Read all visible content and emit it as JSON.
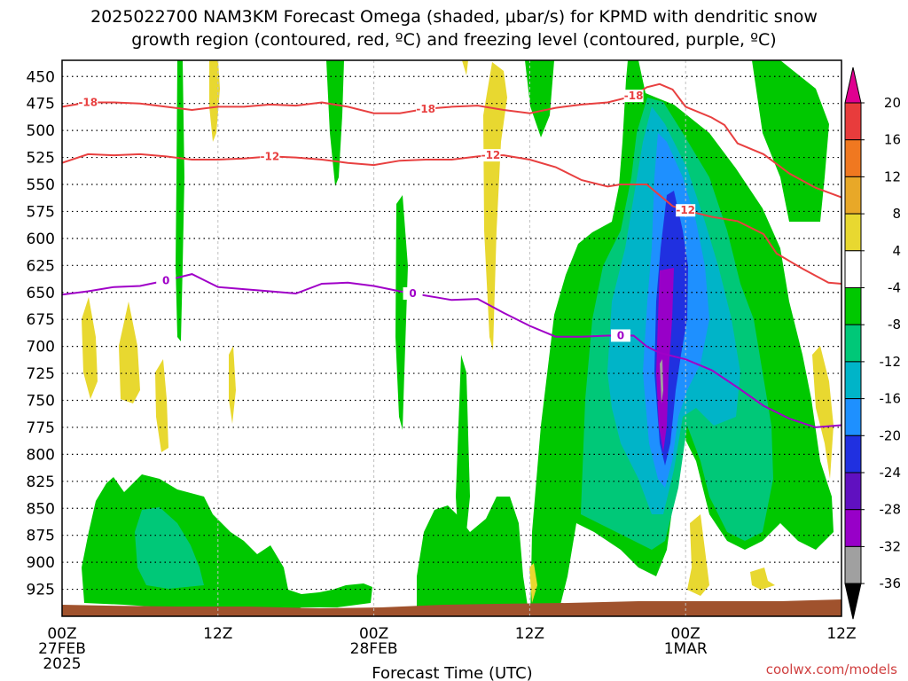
{
  "chart_data": {
    "type": "heatmap",
    "title_line1": "2025022700 NAM3KM Forecast Omega (shaded, μbar/s) for KPMD with dendritic snow",
    "title_line2": "growth region (contoured, red, ºC) and freezing level (contoured, purple, ºC)",
    "xlabel": "Forecast Time (UTC)",
    "credit": "coolwx.com/models",
    "x_ticks": [
      {
        "hour": 0,
        "label": "00Z",
        "sub1": "27FEB",
        "sub2": "2025"
      },
      {
        "hour": 12,
        "label": "12Z",
        "sub1": "",
        "sub2": ""
      },
      {
        "hour": 24,
        "label": "00Z",
        "sub1": "28FEB",
        "sub2": ""
      },
      {
        "hour": 36,
        "label": "12Z",
        "sub1": "",
        "sub2": ""
      },
      {
        "hour": 48,
        "label": "00Z",
        "sub1": "1MAR",
        "sub2": ""
      },
      {
        "hour": 60,
        "label": "12Z",
        "sub1": "",
        "sub2": ""
      }
    ],
    "xlim": [
      0,
      60
    ],
    "y_ticks": [
      "450",
      "475",
      "500",
      "525",
      "550",
      "575",
      "600",
      "625",
      "650",
      "675",
      "700",
      "725",
      "750",
      "775",
      "800",
      "825",
      "850",
      "875",
      "900",
      "925"
    ],
    "ylim": [
      435,
      950
    ],
    "colorbar": {
      "ticks": [
        "20",
        "16",
        "12",
        "8",
        "4",
        "-4",
        "-8",
        "-12",
        "-16",
        "-20",
        "-24",
        "-28",
        "-32",
        "-36"
      ],
      "colors": [
        "#e00090",
        "#e83c3c",
        "#f07820",
        "#e8a828",
        "#e8d830",
        "#ffffff",
        "#00c800",
        "#00c878",
        "#00b4c8",
        "#1e90ff",
        "#2030e0",
        "#6010c0",
        "#9800c8",
        "#a0a0a0",
        "#000000"
      ]
    },
    "contours": {
      "dgz_red": {
        "color": "#e84040",
        "lines": [
          {
            "label": "-18",
            "points": [
              [
                0,
                478
              ],
              [
                2,
                474
              ],
              [
                4,
                474
              ],
              [
                6,
                475
              ],
              [
                8,
                478
              ],
              [
                10,
                481
              ],
              [
                12,
                478
              ],
              [
                14,
                478
              ],
              [
                16,
                476
              ],
              [
                18,
                477
              ],
              [
                20,
                474
              ],
              [
                22,
                478
              ],
              [
                24,
                484
              ],
              [
                26,
                484
              ],
              [
                28,
                480
              ],
              [
                30,
                478
              ],
              [
                32,
                477
              ],
              [
                34,
                481
              ],
              [
                36,
                484
              ],
              [
                38,
                479
              ],
              [
                40,
                476
              ],
              [
                42,
                474
              ],
              [
                44,
                468
              ],
              [
                45,
                460
              ],
              [
                46,
                457
              ],
              [
                47,
                462
              ],
              [
                48,
                478
              ],
              [
                50,
                488
              ],
              [
                51,
                495
              ],
              [
                52,
                512
              ],
              [
                54,
                522
              ],
              [
                56,
                540
              ],
              [
                58,
                553
              ],
              [
                60,
                562
              ]
            ]
          },
          {
            "label": "-12",
            "points": [
              [
                0,
                530
              ],
              [
                2,
                522
              ],
              [
                4,
                523
              ],
              [
                6,
                522
              ],
              [
                8,
                524
              ],
              [
                10,
                527
              ],
              [
                12,
                527
              ],
              [
                14,
                526
              ],
              [
                16,
                524
              ],
              [
                18,
                525
              ],
              [
                20,
                527
              ],
              [
                22,
                530
              ],
              [
                24,
                532
              ],
              [
                26,
                528
              ],
              [
                28,
                527
              ],
              [
                30,
                527
              ],
              [
                32,
                524
              ],
              [
                33,
                523
              ],
              [
                34,
                523
              ],
              [
                36,
                527
              ],
              [
                38,
                534
              ],
              [
                40,
                546
              ],
              [
                42,
                552
              ],
              [
                43,
                550
              ],
              [
                44,
                550
              ],
              [
                45,
                550
              ],
              [
                46,
                560
              ],
              [
                47,
                570
              ],
              [
                48,
                574
              ],
              [
                50,
                580
              ],
              [
                52,
                584
              ],
              [
                54,
                596
              ],
              [
                55,
                614
              ],
              [
                57,
                628
              ],
              [
                59,
                641
              ],
              [
                60,
                642
              ]
            ]
          },
          {
            "label": "0",
            "color": "#a000c8",
            "points": [
              [
                0,
                652
              ],
              [
                2,
                649
              ],
              [
                4,
                645
              ],
              [
                6,
                644
              ],
              [
                8,
                639
              ],
              [
                10,
                633
              ],
              [
                11,
                639
              ],
              [
                12,
                645
              ],
              [
                14,
                647
              ],
              [
                16,
                649
              ],
              [
                18,
                651
              ],
              [
                20,
                642
              ],
              [
                22,
                641
              ],
              [
                24,
                644
              ],
              [
                26,
                649
              ],
              [
                28,
                653
              ],
              [
                29,
                655
              ],
              [
                30,
                657
              ],
              [
                32,
                656
              ],
              [
                34,
                669
              ],
              [
                36,
                681
              ],
              [
                38,
                691
              ],
              [
                40,
                691
              ],
              [
                42,
                690
              ],
              [
                44,
                690
              ],
              [
                45,
                700
              ],
              [
                46,
                706
              ],
              [
                48,
                712
              ],
              [
                50,
                722
              ],
              [
                52,
                738
              ],
              [
                54,
                755
              ],
              [
                56,
                767
              ],
              [
                58,
                775
              ],
              [
                60,
                773
              ]
            ]
          }
        ]
      }
    }
  }
}
